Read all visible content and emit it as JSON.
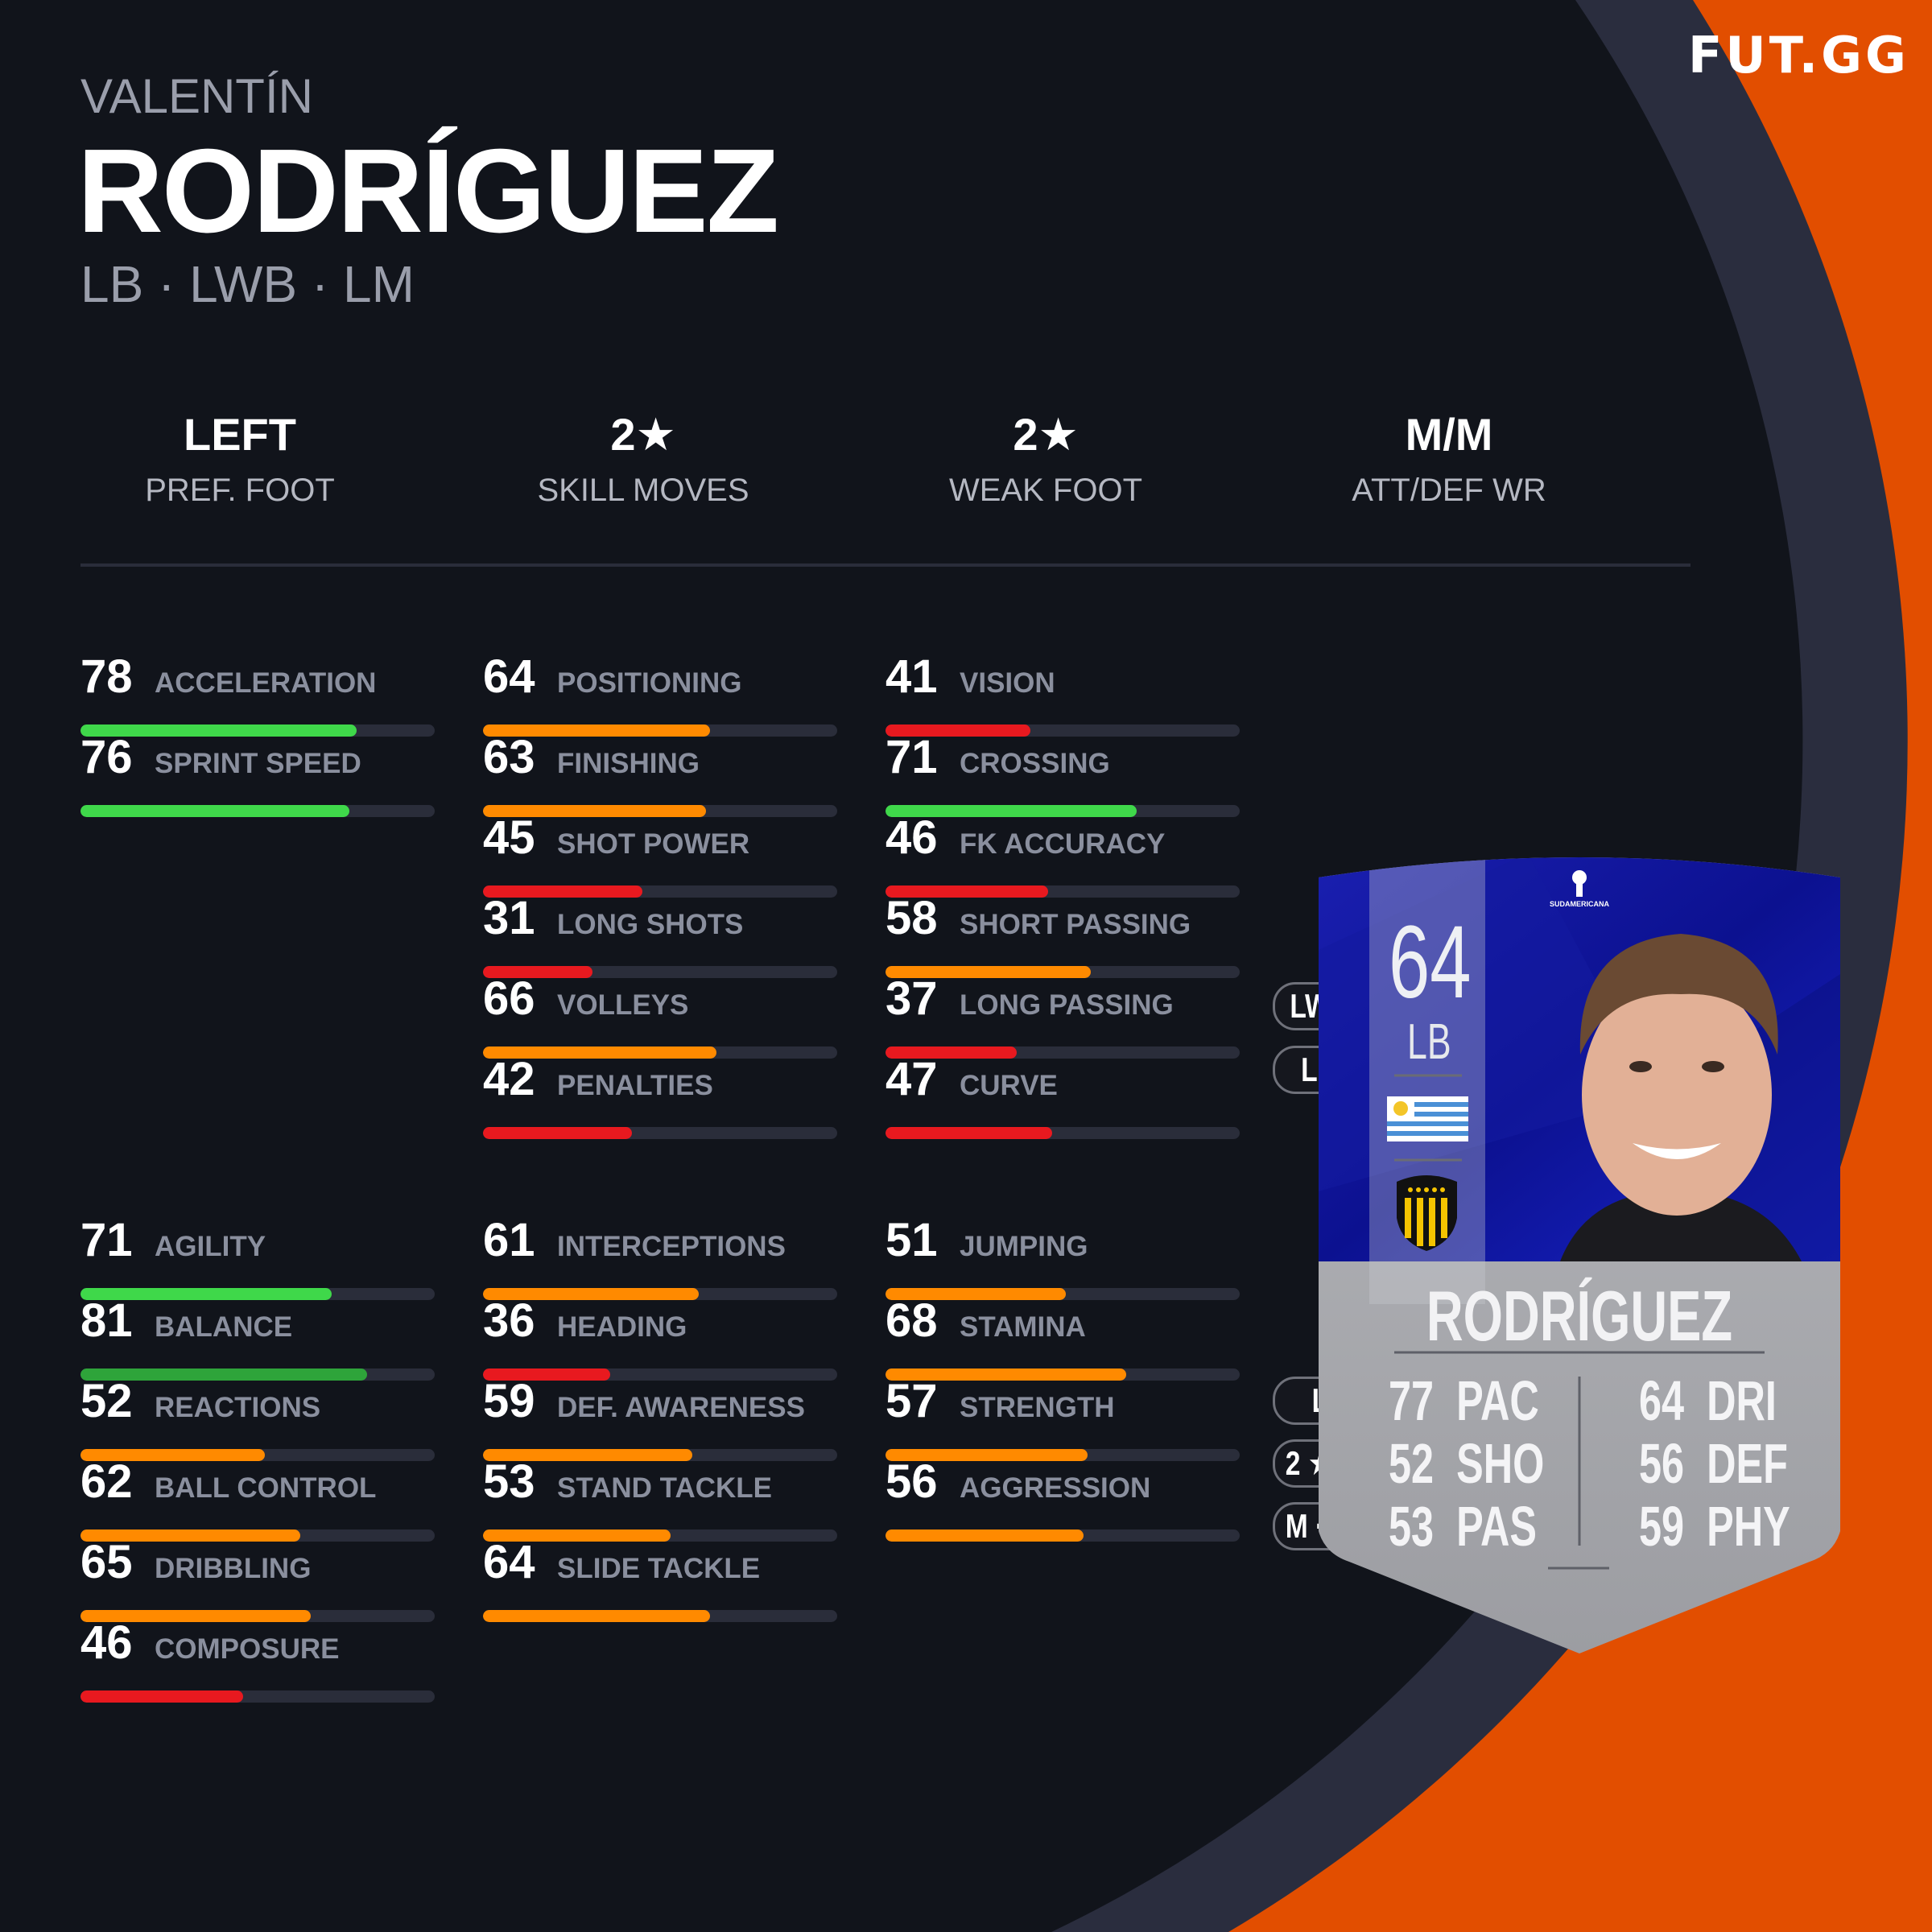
{
  "brand": {
    "logo": "FUT.GG",
    "accent": "#e24e00"
  },
  "player": {
    "first_name": "VALENTÍN",
    "last_name": "RODRÍGUEZ",
    "positions": "LB · LWB · LM"
  },
  "info": [
    {
      "value": "LEFT",
      "label": "PREF. FOOT"
    },
    {
      "value": "2★",
      "label": "SKILL MOVES"
    },
    {
      "value": "2★",
      "label": "WEAK FOOT"
    },
    {
      "value": "M/M",
      "label": "ATT/DEF WR"
    }
  ],
  "stat_colors": {
    "elite": "#2ea43a",
    "high": "#3fd84a",
    "mid": "#ff8a00",
    "low": "#e8191f",
    "track": "#2a2d3a"
  },
  "stats_top": [
    [
      {
        "value": 78,
        "label": "ACCELERATION"
      },
      {
        "value": 76,
        "label": "SPRINT SPEED"
      }
    ],
    [
      {
        "value": 64,
        "label": "POSITIONING"
      },
      {
        "value": 63,
        "label": "FINISHING"
      },
      {
        "value": 45,
        "label": "SHOT POWER"
      },
      {
        "value": 31,
        "label": "LONG SHOTS"
      },
      {
        "value": 66,
        "label": "VOLLEYS"
      },
      {
        "value": 42,
        "label": "PENALTIES"
      }
    ],
    [
      {
        "value": 41,
        "label": "VISION"
      },
      {
        "value": 71,
        "label": "CROSSING"
      },
      {
        "value": 46,
        "label": "FK ACCURACY"
      },
      {
        "value": 58,
        "label": "SHORT PASSING"
      },
      {
        "value": 37,
        "label": "LONG PASSING"
      },
      {
        "value": 47,
        "label": "CURVE"
      }
    ]
  ],
  "stats_bottom": [
    [
      {
        "value": 71,
        "label": "AGILITY"
      },
      {
        "value": 81,
        "label": "BALANCE"
      },
      {
        "value": 52,
        "label": "REACTIONS"
      },
      {
        "value": 62,
        "label": "BALL CONTROL"
      },
      {
        "value": 65,
        "label": "DRIBBLING"
      },
      {
        "value": 46,
        "label": "COMPOSURE"
      }
    ],
    [
      {
        "value": 61,
        "label": "INTERCEPTIONS"
      },
      {
        "value": 36,
        "label": "HEADING"
      },
      {
        "value": 59,
        "label": "DEF. AWARENESS"
      },
      {
        "value": 53,
        "label": "STAND TACKLE"
      },
      {
        "value": 64,
        "label": "SLIDE TACKLE"
      }
    ],
    [
      {
        "value": 51,
        "label": "JUMPING"
      },
      {
        "value": 68,
        "label": "STAMINA"
      },
      {
        "value": 57,
        "label": "STRENGTH"
      },
      {
        "value": 56,
        "label": "AGGRESSION"
      }
    ]
  ],
  "card": {
    "rating": "64",
    "position": "LB",
    "name": "RODRÍGUEZ",
    "alt_positions": [
      "LWB",
      "LM"
    ],
    "foot": "L",
    "skills_weak": "2 ★ 2",
    "work_rates": "M · M",
    "league_text": "SUDAMERICANA",
    "nation_flag": "uruguay-flag-icon",
    "club_badge": "penarol-badge-icon",
    "face_stats": [
      {
        "value": "77",
        "label": "PAC"
      },
      {
        "value": "52",
        "label": "SHO"
      },
      {
        "value": "53",
        "label": "PAS"
      },
      {
        "value": "64",
        "label": "DRI"
      },
      {
        "value": "56",
        "label": "DEF"
      },
      {
        "value": "59",
        "label": "PHY"
      }
    ]
  }
}
